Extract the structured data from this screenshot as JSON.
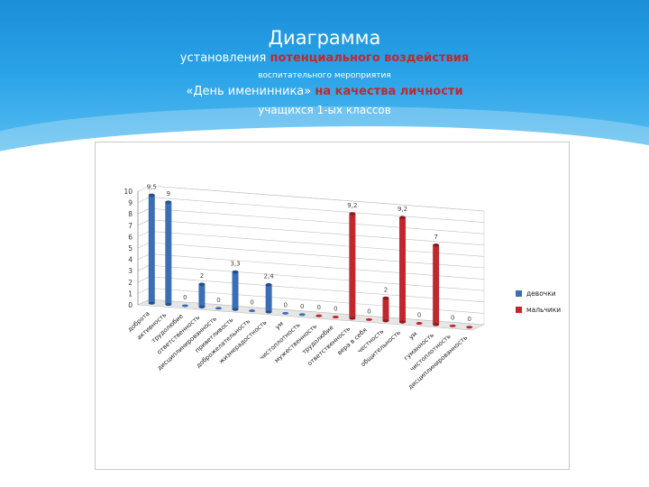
{
  "header": {
    "title": "Диаграмма",
    "line1_a": "установления ",
    "line1_b": "потенциального воздействия",
    "line2": "воспитательного мероприятия",
    "line3_a": "«День именинника» ",
    "line3_b": "на качества личности",
    "line4": "учащихся 1-ых классов"
  },
  "colors": {
    "series1": "#3a6fb5",
    "series2": "#c0282d"
  },
  "chart_data": {
    "type": "bar",
    "ylim": [
      0,
      10
    ],
    "yticks": [
      "0",
      "1",
      "2",
      "3",
      "4",
      "5",
      "6",
      "7",
      "8",
      "9",
      "10"
    ],
    "categories": [
      "доброта",
      "активность",
      "трудолюбие",
      "ответственность",
      "дисциплинированность",
      "приветливость",
      "доброжелательность",
      "жизнерадостность",
      "ум",
      "чистоплотность",
      "мужественность",
      "трудолюбие",
      "ответственность",
      "вера в себя",
      "честность",
      "общительность",
      "ум",
      "гуманность",
      "чистоплотность",
      "дисциплинированность"
    ],
    "data_labels": [
      "9,5",
      "9",
      "0",
      "2",
      "0",
      "3,3",
      "0",
      "2,4",
      "0",
      "0",
      "0",
      "0",
      "9,2",
      "0",
      "2",
      "9,2",
      "0",
      "7",
      "0",
      "0"
    ],
    "legend_position": "right",
    "series": [
      {
        "name": "девочки",
        "values": [
          9.5,
          9,
          0,
          2,
          0,
          3.3,
          0,
          2.4,
          0,
          0,
          null,
          null,
          null,
          null,
          null,
          null,
          null,
          null,
          null,
          null
        ]
      },
      {
        "name": "мальчики",
        "values": [
          null,
          null,
          null,
          null,
          null,
          null,
          null,
          null,
          null,
          null,
          0,
          0,
          9.2,
          0,
          2,
          9.2,
          0,
          7,
          0,
          0
        ]
      }
    ]
  }
}
